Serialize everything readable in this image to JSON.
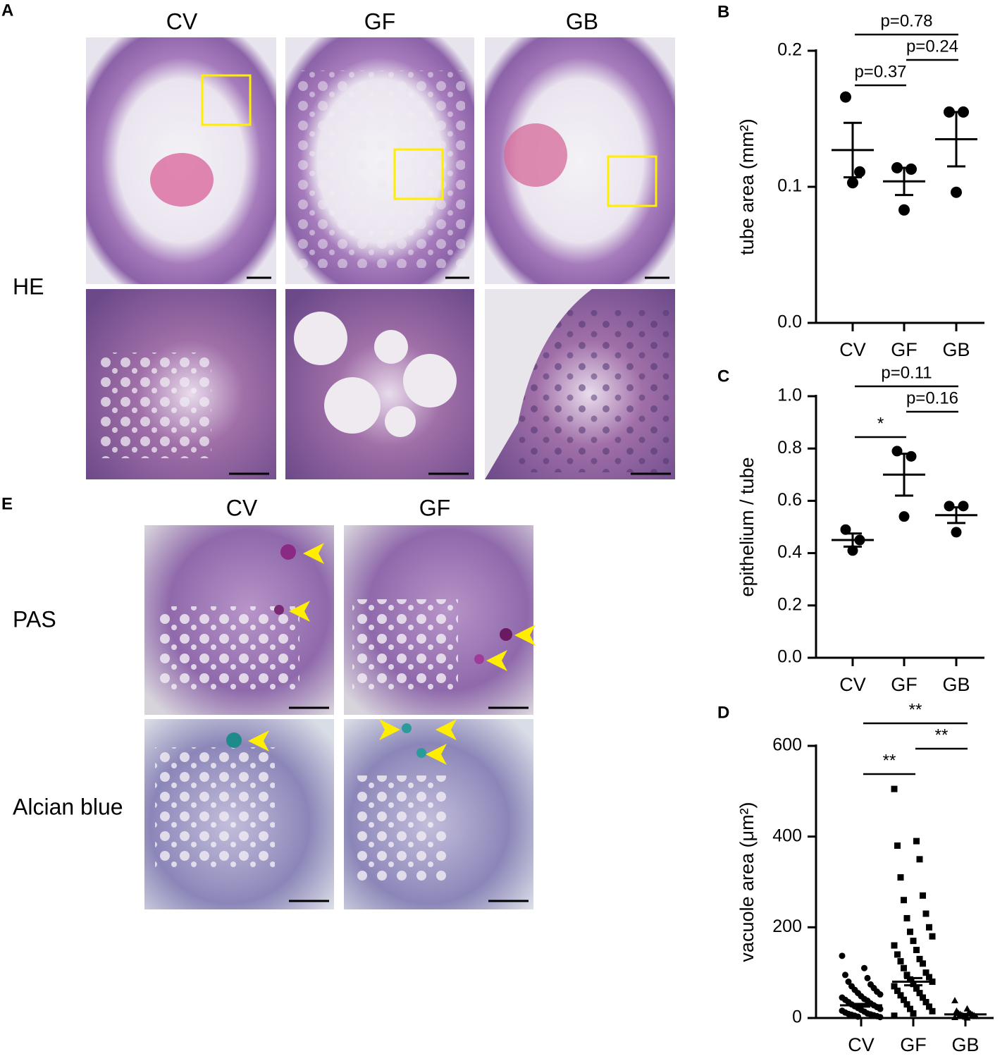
{
  "figure": {
    "panel_a": {
      "label": "A",
      "columns": [
        "CV",
        "GF",
        "GB"
      ],
      "row_label": "HE"
    },
    "panel_e": {
      "label": "E",
      "columns": [
        "CV",
        "GF"
      ],
      "rows": [
        "PAS",
        "Alcian blue"
      ]
    }
  },
  "chart_data": [
    {
      "type": "dot",
      "label": "B",
      "y_label": "tube area (mm²)",
      "categories": [
        "CV",
        "GF",
        "GB"
      ],
      "values": [
        [
          0.166,
          0.111,
          0.103
        ],
        [
          0.114,
          0.113,
          0.083
        ],
        [
          0.155,
          0.155,
          0.096
        ]
      ],
      "mean": [
        0.127,
        0.104,
        0.135
      ],
      "sem": [
        0.02,
        0.01,
        0.02
      ],
      "markers": [
        "circle",
        "circle",
        "circle"
      ],
      "color": "#000000",
      "ylim": [
        0,
        0.2
      ],
      "yticks": [
        {
          "value": 0,
          "label": "0.0"
        },
        0.1,
        0.2
      ],
      "annotations": [
        {
          "text": "p=0.37",
          "groups": [
            "CV",
            "GF"
          ]
        },
        {
          "text": "p=0.24",
          "groups": [
            "GF",
            "GB"
          ]
        },
        {
          "text": "p=0.78",
          "groups": [
            "CV",
            "GB"
          ]
        }
      ]
    },
    {
      "type": "dot",
      "label": "C",
      "y_label": "epithelium / tube",
      "categories": [
        "CV",
        "GF",
        "GB"
      ],
      "values": [
        [
          0.49,
          0.45,
          0.41
        ],
        [
          0.79,
          0.77,
          0.54
        ],
        [
          0.58,
          0.58,
          0.48
        ]
      ],
      "mean": [
        0.45,
        0.7,
        0.545
      ],
      "sem": [
        0.025,
        0.08,
        0.03
      ],
      "markers": [
        "circle",
        "circle",
        "circle"
      ],
      "color": "#000000",
      "ylim": [
        0,
        1
      ],
      "yticks": [
        {
          "value": 0,
          "label": "0.0"
        },
        0.2,
        0.4,
        0.6,
        0.8,
        {
          "value": 1,
          "label": "1.0"
        }
      ],
      "annotations": [
        {
          "text": "*",
          "groups": [
            "CV",
            "GF"
          ]
        },
        {
          "text": "p=0.16",
          "groups": [
            "GF",
            "GB"
          ]
        },
        {
          "text": "p=0.11",
          "groups": [
            "CV",
            "GB"
          ]
        }
      ]
    },
    {
      "type": "dot",
      "label": "D",
      "y_label": "vacuole area (μm²)",
      "categories": [
        "CV",
        "GF",
        "GB"
      ],
      "values": [
        [
          137,
          110,
          95,
          88,
          80,
          74,
          70,
          66,
          62,
          58,
          55,
          52,
          48,
          45,
          42,
          40,
          38,
          35,
          32,
          30,
          28,
          26,
          24,
          22,
          20,
          18,
          16,
          14,
          12,
          10,
          9,
          8,
          7,
          6,
          5,
          4,
          3,
          2
        ],
        [
          505,
          390,
          380,
          350,
          310,
          270,
          260,
          230,
          220,
          200,
          190,
          180,
          170,
          160,
          150,
          140,
          130,
          125,
          120,
          110,
          100,
          95,
          90,
          85,
          80,
          75,
          70,
          65,
          60,
          55,
          50,
          45,
          40,
          35,
          30,
          25,
          20,
          15,
          10,
          5
        ],
        [
          38,
          20,
          15,
          12,
          10,
          9,
          8,
          7,
          6,
          5,
          4,
          3,
          2,
          1,
          0
        ]
      ],
      "mean": [
        28,
        80,
        8
      ],
      "sem": [
        3,
        8,
        1
      ],
      "markers": [
        "circle",
        "square",
        "triangle"
      ],
      "color": "#000000",
      "ylim": [
        0,
        600
      ],
      "yticks": [
        0,
        200,
        400,
        600
      ],
      "annotations": [
        {
          "text": "**",
          "groups": [
            "CV",
            "GF"
          ]
        },
        {
          "text": "**",
          "groups": [
            "GF",
            "GB"
          ]
        },
        {
          "text": "**",
          "groups": [
            "CV",
            "GB"
          ]
        }
      ]
    }
  ]
}
